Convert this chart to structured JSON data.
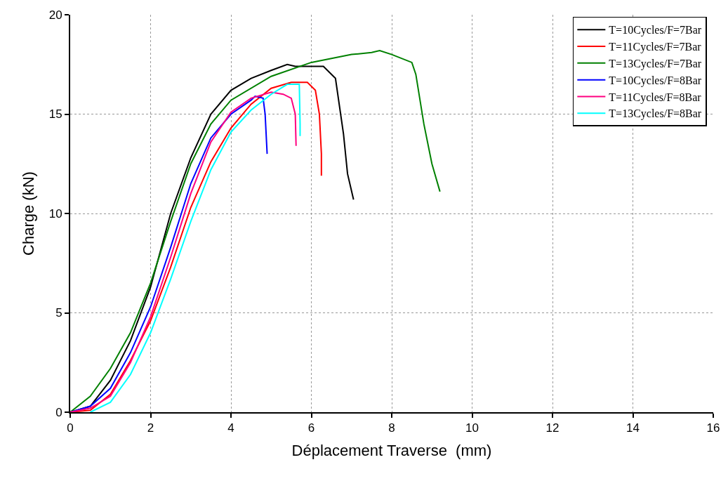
{
  "chart_data": {
    "type": "line",
    "xlabel": "Déplacement Traverse  (mm)",
    "ylabel": "Charge (kN)",
    "xlim": [
      0,
      16
    ],
    "xticks": [
      0,
      2,
      4,
      6,
      8,
      10,
      12,
      14,
      16
    ],
    "ylim": [
      0,
      20
    ],
    "yticks": [
      0,
      5,
      10,
      15,
      20
    ],
    "grid": true,
    "legend": "top right",
    "line_style": "solid",
    "marker": "none",
    "series": [
      {
        "name": "T=10Cycles/F=7Bar",
        "color": "#000000",
        "x": [
          0,
          0.5,
          1,
          1.5,
          2,
          2.5,
          3,
          3.5,
          4,
          4.5,
          5,
          5.4,
          5.6,
          6.3,
          6.6,
          6.8,
          6.9,
          7.05
        ],
        "values": [
          0,
          0.3,
          1.6,
          3.6,
          6.3,
          10,
          12.8,
          15.0,
          16.2,
          16.8,
          17.2,
          17.5,
          17.4,
          17.4,
          16.8,
          14,
          12,
          10.7
        ]
      },
      {
        "name": "T=11Cycles/F=7Bar",
        "color": "#ff0000",
        "x": [
          0,
          0.5,
          1,
          1.5,
          2,
          2.5,
          3,
          3.5,
          4,
          4.5,
          5,
          5.5,
          5.9,
          6.1,
          6.2,
          6.25,
          6.25
        ],
        "values": [
          0,
          0.1,
          0.9,
          2.6,
          4.6,
          7.3,
          10.3,
          12.6,
          14.3,
          15.5,
          16.3,
          16.6,
          16.6,
          16.2,
          15,
          13,
          11.9
        ]
      },
      {
        "name": "T=13Cycles/F=7Bar",
        "color": "#008000",
        "x": [
          0,
          0.5,
          1,
          1.5,
          2,
          2.5,
          3,
          3.5,
          4,
          5,
          6,
          7,
          7.5,
          7.7,
          8,
          8.5,
          8.6,
          8.8,
          9.0,
          9.2
        ],
        "values": [
          0,
          0.8,
          2.2,
          4.0,
          6.5,
          9.6,
          12.5,
          14.5,
          15.7,
          16.9,
          17.6,
          18.0,
          18.1,
          18.2,
          18.0,
          17.6,
          17.0,
          14.5,
          12.5,
          11.1
        ]
      },
      {
        "name": "T=10Cycles/F=8Bar",
        "color": "#0000ff",
        "x": [
          0,
          0.5,
          1,
          1.5,
          2,
          2.5,
          3,
          3.5,
          4,
          4.5,
          4.6,
          4.8,
          4.85,
          4.9
        ],
        "values": [
          0,
          0.3,
          1.2,
          3.0,
          5.3,
          8.3,
          11.5,
          13.8,
          15.0,
          15.7,
          15.9,
          15.8,
          15.0,
          13.0
        ]
      },
      {
        "name": "T=11Cycles/F=8Bar",
        "color": "#ff0080",
        "x": [
          0,
          0.5,
          1,
          1.5,
          2,
          2.5,
          3,
          3.5,
          4,
          4.5,
          5,
          5.3,
          5.5,
          5.6,
          5.62
        ],
        "values": [
          0,
          0.2,
          0.8,
          2.5,
          4.8,
          7.8,
          11,
          13.6,
          15.1,
          15.8,
          16.1,
          16.0,
          15.8,
          15,
          13.4
        ]
      },
      {
        "name": "T=13Cycles/F=8Bar",
        "color": "#00ffff",
        "x": [
          0.5,
          1,
          1.5,
          2,
          2.5,
          3,
          3.5,
          4,
          4.5,
          5,
          5.4,
          5.7,
          5.72,
          5.72
        ],
        "values": [
          0,
          0.5,
          1.9,
          4,
          6.7,
          9.6,
          12.2,
          14.1,
          15.2,
          16.0,
          16.5,
          16.5,
          14.5,
          13.9
        ]
      }
    ]
  }
}
